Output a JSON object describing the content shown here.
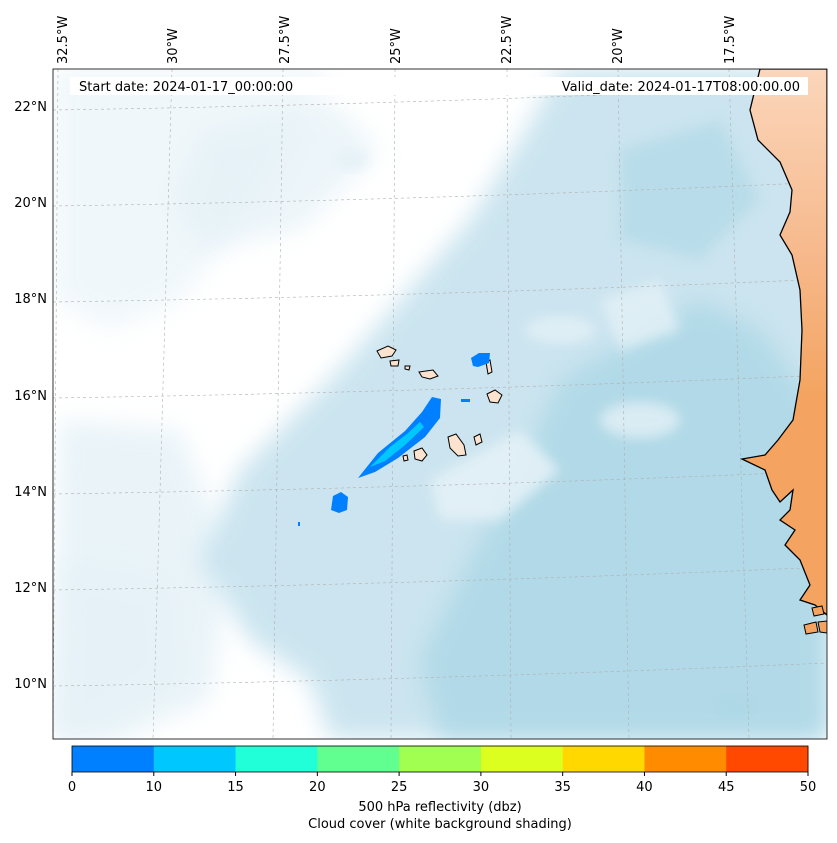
{
  "map": {
    "banner": {
      "start_date": "Start date: 2024-01-17_00:00:00",
      "valid_date": "Valid_date: 2024-01-17T08:00:00.00"
    },
    "lon_ticks": [
      "32.5°W",
      "30°W",
      "27.5°W",
      "25°W",
      "22.5°W",
      "20°W",
      "17.5°W"
    ],
    "lat_ticks": [
      "22°N",
      "20°N",
      "18°N",
      "16°N",
      "14°N",
      "12°N",
      "10°N"
    ],
    "colors": {
      "cloud_light": "#e4f1f7",
      "cloud_mid": "#c6e2ee",
      "cloud_dark": "#add8e6",
      "land": "#f4a460",
      "land_light": "#fcdcc4",
      "islands": "#fbe3cf",
      "coast": "#000000",
      "gridline": "#b0b0b0"
    }
  },
  "colorbar": {
    "label_line1": "500 hPa reflectivity (dbz)",
    "label_line2": "Cloud cover (white background shading)",
    "tick_labels": [
      "0",
      "10",
      "15",
      "20",
      "25",
      "30",
      "35",
      "40",
      "45",
      "50"
    ],
    "colors": [
      "#0080ff",
      "#00c8ff",
      "#20ffd8",
      "#60ff90",
      "#a0ff50",
      "#dcff20",
      "#ffd800",
      "#ff8c00",
      "#ff4800"
    ]
  }
}
